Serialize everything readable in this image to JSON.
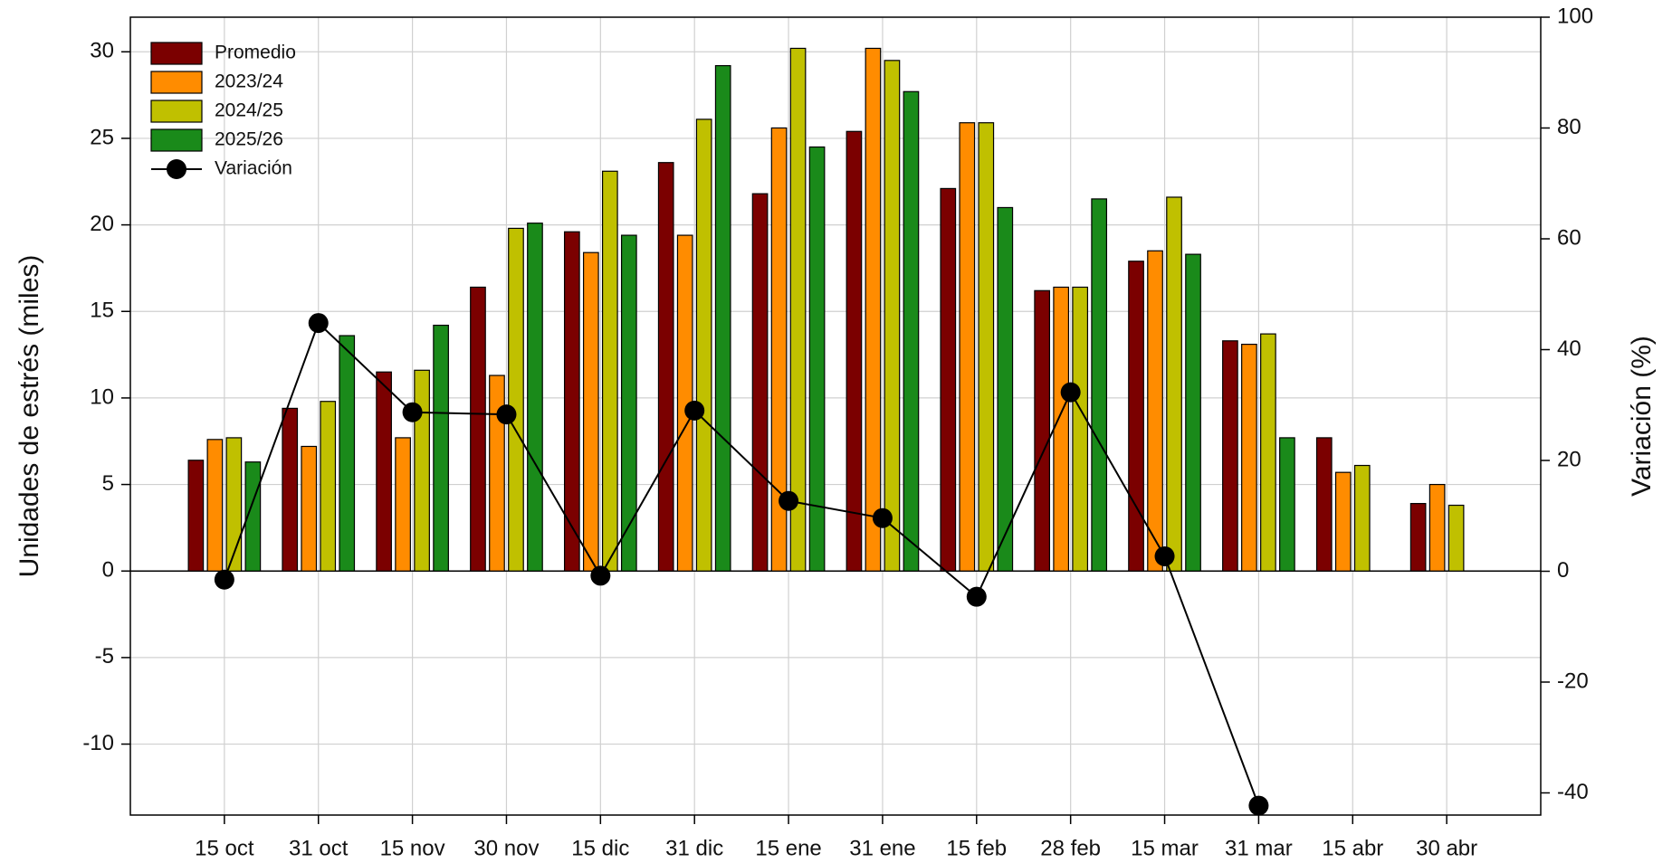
{
  "chart_data": {
    "type": "bar",
    "y_label": "Unidades de estrés (miles)",
    "y2_label": "Variación (%)",
    "categories": [
      "15 oct",
      "31 oct",
      "15 nov",
      "30 nov",
      "15 dic",
      "31 dic",
      "15 ene",
      "31 ene",
      "15 feb",
      "28 feb",
      "15 mar",
      "31 mar",
      "15 abr",
      "30 abr"
    ],
    "series": [
      {
        "name": "Promedio",
        "color": "#7b0000",
        "values": [
          6.4,
          9.4,
          11.5,
          16.4,
          19.6,
          23.6,
          21.8,
          25.4,
          22.1,
          16.2,
          17.9,
          13.3,
          7.7,
          3.9
        ]
      },
      {
        "name": "2023/24",
        "color": "#ff8c00",
        "values": [
          7.6,
          7.2,
          7.7,
          11.3,
          18.4,
          19.4,
          25.6,
          30.2,
          25.9,
          16.4,
          18.5,
          13.1,
          5.7,
          5.0
        ]
      },
      {
        "name": "2024/25",
        "color": "#c0c000",
        "values": [
          7.7,
          9.8,
          11.6,
          19.8,
          23.1,
          26.1,
          30.2,
          29.5,
          25.9,
          16.4,
          21.6,
          13.7,
          6.1,
          3.8
        ]
      },
      {
        "name": "2025/26",
        "color": "#1a8a1a",
        "values": [
          6.3,
          13.6,
          14.2,
          20.1,
          19.4,
          29.2,
          24.5,
          27.7,
          21.0,
          21.5,
          18.3,
          7.7,
          null,
          null
        ]
      },
      {
        "name": "Variación",
        "type": "line",
        "axis": "y2",
        "color": "#000000",
        "values": [
          -1.5,
          44.8,
          28.7,
          28.3,
          -0.8,
          29.0,
          12.7,
          9.6,
          -4.6,
          32.3,
          2.7,
          -42.3,
          null,
          null
        ]
      }
    ],
    "ylim": [
      -14.1,
      32
    ],
    "yticks": [
      -10,
      -5,
      0,
      5,
      10,
      15,
      20,
      25,
      30
    ],
    "y2lim": [
      -44,
      100
    ],
    "y2ticks": [
      -40,
      -20,
      0,
      20,
      40,
      60,
      80,
      100
    ],
    "grid": true,
    "legend": "top-left"
  }
}
